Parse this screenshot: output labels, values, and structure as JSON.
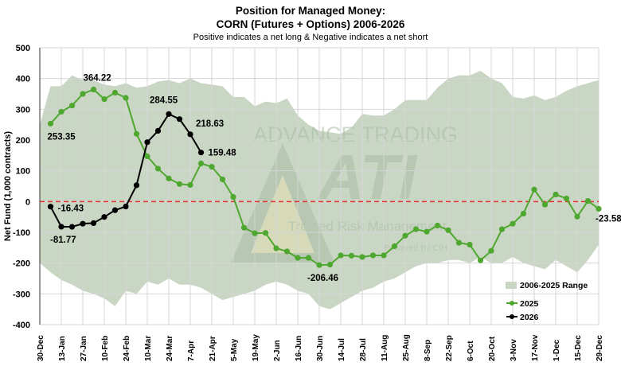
{
  "chart_data": {
    "type": "line",
    "title_line1": "Position for Managed Money:",
    "title_line2": "CORN (Futures + Options) 2006-2026",
    "subtitle": "Positive indicates a net long & Negative indicates a net short",
    "ylabel": "Net Fund (1,000 contracts)",
    "ylim": [
      -400,
      500
    ],
    "yticks": [
      "500",
      "400",
      "300",
      "200",
      "100",
      "0",
      "-100",
      "-200",
      "-300",
      "-400"
    ],
    "xtick_labels": [
      "30-Dec",
      "13-Jan",
      "27-Jan",
      "10-Feb",
      "24-Feb",
      "10-Mar",
      "24-Mar",
      "7-Apr",
      "21-Apr",
      "5-May",
      "19-May",
      "2-Jun",
      "16-Jun",
      "30-Jun",
      "14-Jul",
      "28-Jul",
      "11-Aug",
      "25-Aug",
      "8-Sep",
      "22-Sep",
      "6-Oct",
      "20-Oct",
      "3-Nov",
      "17-Nov",
      "1-Dec",
      "15-Dec",
      "29-Dec"
    ],
    "grid": true,
    "zero_line": {
      "style": "dashed",
      "color": "#e03030"
    },
    "legend_position": "bottom-right",
    "range": {
      "name": "2006-2025 Range",
      "color": "#c9d6c4",
      "upper": [
        250,
        375,
        375,
        410,
        395,
        395,
        380,
        375,
        385,
        370,
        375,
        390,
        395,
        385,
        400,
        385,
        380,
        375,
        340,
        340,
        310,
        325,
        320,
        335,
        280,
        250,
        230,
        225,
        220,
        240,
        285,
        280,
        280,
        300,
        330,
        330,
        330,
        370,
        400,
        410,
        410,
        425,
        400,
        385,
        340,
        335,
        345,
        330,
        340,
        360,
        375,
        385,
        395
      ],
      "lower": [
        -200,
        -230,
        -255,
        -270,
        -290,
        -300,
        -315,
        -340,
        -290,
        -300,
        -260,
        -270,
        -250,
        -270,
        -270,
        -280,
        -300,
        -320,
        -310,
        -300,
        -290,
        -270,
        -260,
        -270,
        -290,
        -300,
        -340,
        -350,
        -330,
        -310,
        -290,
        -280,
        -260,
        -250,
        -230,
        -210,
        -200,
        -200,
        -190,
        -190,
        -200,
        -180,
        -200,
        -200,
        -180,
        -200,
        -210,
        -220,
        -190,
        -210,
        -230,
        -190,
        -140
      ]
    },
    "series": [
      {
        "name": "2025",
        "color": "#4ea72e",
        "start_week": 1,
        "values": [
          253.35,
          292,
          312,
          350,
          364.22,
          333,
          354,
          337,
          220,
          147,
          107,
          75,
          57,
          54,
          124,
          113,
          72,
          15,
          -85,
          -103,
          -102,
          -152,
          -162,
          -183,
          -183,
          -206.46,
          -205,
          -175,
          -176,
          -180,
          -175,
          -175,
          -145,
          -111,
          -90,
          -98,
          -78,
          -93,
          -134,
          -140,
          -191,
          -160,
          -90,
          -72,
          -39,
          39,
          -10,
          23,
          10,
          -49,
          2,
          -23.58
        ]
      },
      {
        "name": "2026",
        "color": "#000000",
        "start_week": 1,
        "values": [
          -16.43,
          -81.77,
          -82,
          -72,
          -70,
          -50,
          -28,
          -16,
          53,
          193,
          230,
          284.55,
          268,
          218.63,
          159.48
        ]
      }
    ],
    "annotations": [
      {
        "series": "2025",
        "index": 0,
        "text": "253.35"
      },
      {
        "series": "2025",
        "index": 4,
        "text": "364.22"
      },
      {
        "series": "2025",
        "index": 25,
        "text": "-206.46"
      },
      {
        "series": "2025",
        "index": 51,
        "text": "-23.58"
      },
      {
        "series": "2026",
        "index": 0,
        "text": "-16.43"
      },
      {
        "series": "2026",
        "index": 1,
        "text": "-81.77"
      },
      {
        "series": "2026",
        "index": 11,
        "text": "284.55"
      },
      {
        "series": "2026",
        "index": 13,
        "text": "218.63"
      },
      {
        "series": "2026",
        "index": 14,
        "text": "159.48"
      }
    ]
  },
  "watermark": {
    "line1": "ADVANCE TRADING",
    "logo": "ATI",
    "line2": "Trusted Risk Management",
    "line3": "Powered by CIH"
  }
}
